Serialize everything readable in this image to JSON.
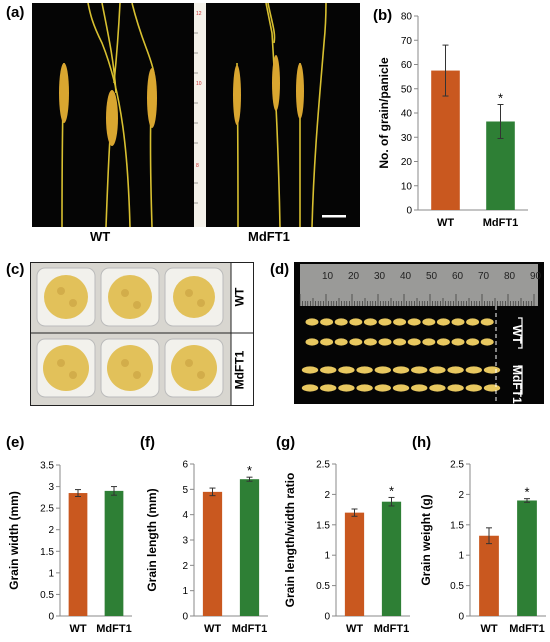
{
  "figure": {
    "panels": {
      "a": "(a)",
      "b": "(b)",
      "c": "(c)",
      "d": "(d)",
      "e": "(e)",
      "f": "(f)",
      "g": "(g)",
      "h": "(h)"
    },
    "photo_a": {
      "left_label": "WT",
      "right_label": "MdFT1"
    },
    "photo_c": {
      "top_label": "WT",
      "bottom_label": "MdFT1"
    },
    "photo_d": {
      "top_label": "WT",
      "bottom_label": "MdFT1",
      "ruler_ticks": [
        "10",
        "20",
        "30",
        "40",
        "50",
        "60",
        "70",
        "80",
        "90"
      ]
    }
  },
  "colors": {
    "wt": "#c9581f",
    "mdft1": "#2e7f35",
    "photo_bg": "#050505",
    "grain": "#e8c860"
  },
  "chart_data": [
    {
      "id": "b",
      "type": "bar",
      "categories": [
        "WT",
        "MdFT1"
      ],
      "values": [
        57.5,
        36.5
      ],
      "errors": [
        10.5,
        7
      ],
      "sig": [
        "",
        "*"
      ],
      "ylabel": "No. of grain/panicle",
      "ylim": [
        0,
        80
      ],
      "ticks": [
        "0",
        "10",
        "20",
        "30",
        "40",
        "50",
        "60",
        "70",
        "80"
      ]
    },
    {
      "id": "e",
      "type": "bar",
      "categories": [
        "WT",
        "MdFT1"
      ],
      "values": [
        2.85,
        2.9
      ],
      "errors": [
        0.08,
        0.1
      ],
      "sig": [
        "",
        ""
      ],
      "ylabel": "Grain width (mm)",
      "ylim": [
        0,
        3.5
      ],
      "ticks": [
        "0",
        "0.5",
        "1",
        "1.5",
        "2",
        "2.5",
        "3",
        "3.5"
      ]
    },
    {
      "id": "f",
      "type": "bar",
      "categories": [
        "WT",
        "MdFT1"
      ],
      "values": [
        4.9,
        5.4
      ],
      "errors": [
        0.15,
        0.08
      ],
      "sig": [
        "",
        "*"
      ],
      "ylabel": "Grain length (mm)",
      "ylim": [
        0,
        6
      ],
      "ticks": [
        "0",
        "1",
        "2",
        "3",
        "4",
        "5",
        "6"
      ]
    },
    {
      "id": "g",
      "type": "bar",
      "categories": [
        "WT",
        "MdFT1"
      ],
      "values": [
        1.7,
        1.88
      ],
      "errors": [
        0.06,
        0.07
      ],
      "sig": [
        "",
        "*"
      ],
      "ylabel": "Grain length/width ratio",
      "ylim": [
        0,
        2.5
      ],
      "ticks": [
        "0",
        "0.5",
        "1",
        "1.5",
        "2",
        "2.5"
      ]
    },
    {
      "id": "h",
      "type": "bar",
      "categories": [
        "WT",
        "MdFT1"
      ],
      "values": [
        1.32,
        1.9
      ],
      "errors": [
        0.13,
        0.03
      ],
      "sig": [
        "",
        "*"
      ],
      "ylabel": "Grain weight (g)",
      "ylim": [
        0,
        2.5
      ],
      "ticks": [
        "0",
        "0.5",
        "1",
        "1.5",
        "2",
        "2.5"
      ]
    }
  ]
}
